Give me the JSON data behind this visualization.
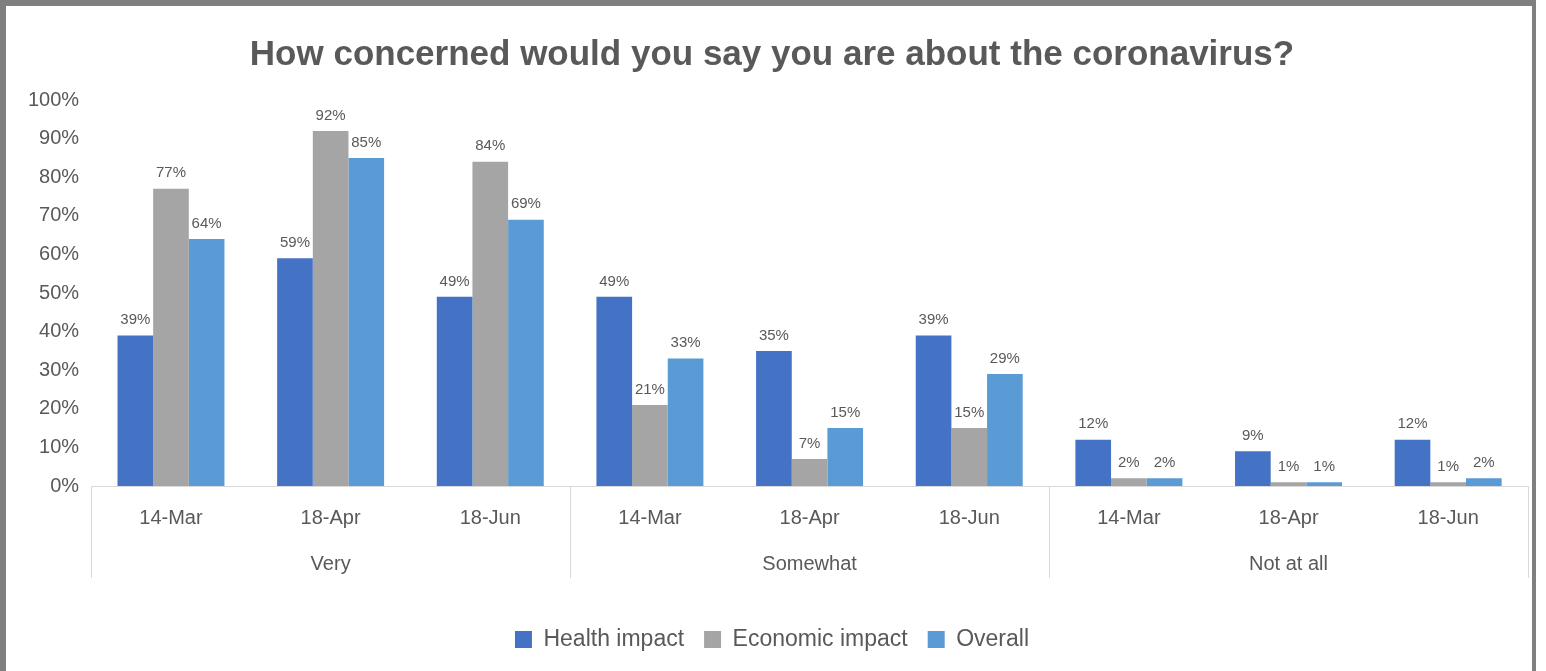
{
  "chart_data": {
    "type": "bar",
    "title": "How concerned would you say you are about the coronavirus?",
    "categories": [
      "14-Mar",
      "18-Apr",
      "18-Jun",
      "14-Mar",
      "18-Apr",
      "18-Jun",
      "14-Mar",
      "18-Apr",
      "18-Jun"
    ],
    "annotations": [
      "Very",
      "Somewhat",
      "Not at all"
    ],
    "series": [
      {
        "name": "Health impact",
        "color": "#4472c4",
        "values": [
          39,
          59,
          49,
          49,
          35,
          39,
          12,
          9,
          12
        ],
        "value_labels": [
          "39%",
          "59%",
          "49%",
          "49%",
          "35%",
          "39%",
          "12%",
          "9%",
          "12%"
        ]
      },
      {
        "name": "Economic impact",
        "color": "#a5a5a5",
        "values": [
          77,
          92,
          84,
          21,
          7,
          15,
          2,
          1,
          1
        ],
        "value_labels": [
          "77%",
          "92%",
          "84%",
          "21%",
          "7%",
          "15%",
          "2%",
          "1%",
          "1%"
        ]
      },
      {
        "name": "Overall",
        "color": "#5b9bd5",
        "values": [
          64,
          85,
          69,
          33,
          15,
          29,
          2,
          1,
          2
        ],
        "value_labels": [
          "64%",
          "85%",
          "69%",
          "33%",
          "15%",
          "29%",
          "2%",
          "1%",
          "2%"
        ]
      }
    ],
    "ylim": [
      0,
      100
    ],
    "yticks": [
      {
        "value": 0,
        "label": "0%"
      },
      {
        "value": 10,
        "label": "10%"
      },
      {
        "value": 20,
        "label": "20%"
      },
      {
        "value": 30,
        "label": "30%"
      },
      {
        "value": 40,
        "label": "40%"
      },
      {
        "value": 50,
        "label": "50%"
      },
      {
        "value": 60,
        "label": "60%"
      },
      {
        "value": 70,
        "label": "70%"
      },
      {
        "value": 80,
        "label": "80%"
      },
      {
        "value": 90,
        "label": "90%"
      },
      {
        "value": 100,
        "label": "100%"
      }
    ],
    "grid": false,
    "legend": "bottom"
  }
}
